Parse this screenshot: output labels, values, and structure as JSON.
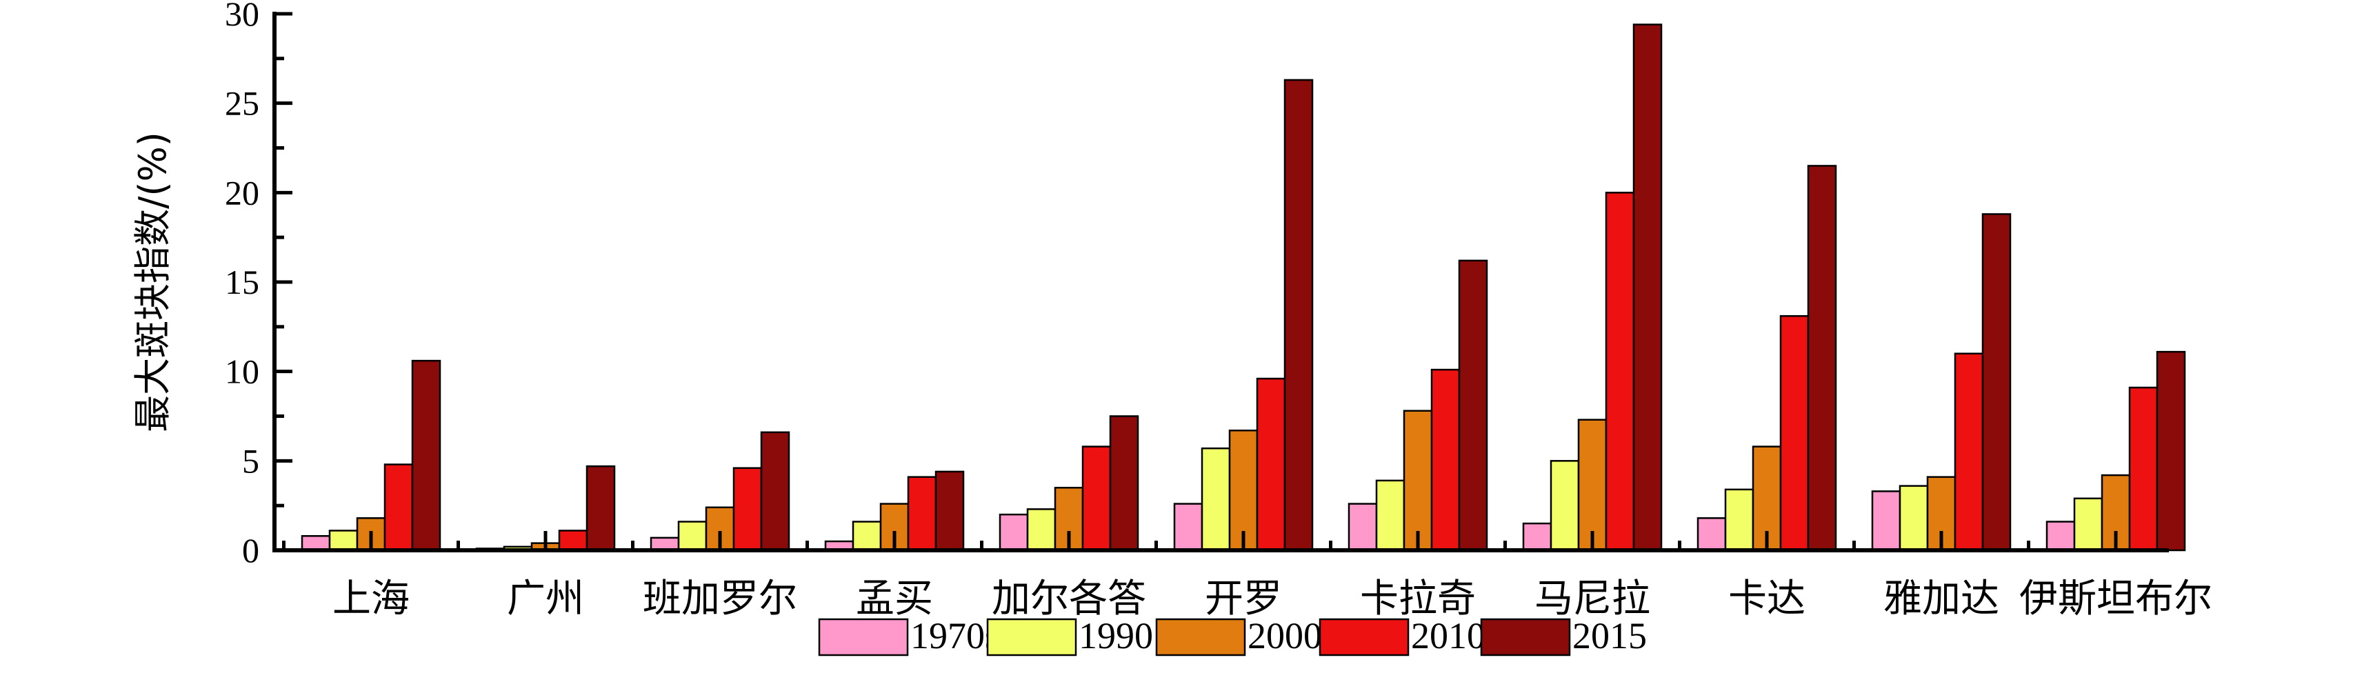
{
  "chart_data": {
    "type": "bar",
    "ylabel": "最大斑块指数/(%)",
    "ylim": [
      0,
      30
    ],
    "yticks": [
      0,
      5,
      10,
      15,
      20,
      25,
      30
    ],
    "categories": [
      "上海",
      "广州",
      "班加罗尔",
      "孟买",
      "加尔各答",
      "开罗",
      "卡拉奇",
      "马尼拉",
      "卡达",
      "雅加达",
      "伊斯坦布尔"
    ],
    "series": [
      {
        "name": "1970s",
        "color": "#ff99cc",
        "values": [
          0.8,
          0.1,
          0.7,
          0.5,
          2.0,
          2.6,
          2.6,
          1.5,
          1.8,
          3.3,
          1.6
        ]
      },
      {
        "name": "1990",
        "color": "#f2ff66",
        "values": [
          1.1,
          0.2,
          1.6,
          1.6,
          2.3,
          5.7,
          3.9,
          5.0,
          3.4,
          3.6,
          2.9
        ]
      },
      {
        "name": "2000",
        "color": "#e07c10",
        "values": [
          1.8,
          0.4,
          2.4,
          2.6,
          3.5,
          6.7,
          7.8,
          7.3,
          5.8,
          4.1,
          4.2
        ]
      },
      {
        "name": "2010",
        "color": "#ee1111",
        "values": [
          4.8,
          1.1,
          4.6,
          4.1,
          5.8,
          9.6,
          10.1,
          20.0,
          13.1,
          11.0,
          9.1
        ]
      },
      {
        "name": "2015",
        "color": "#8b0a0a",
        "values": [
          10.6,
          4.7,
          6.6,
          4.4,
          7.5,
          26.3,
          16.2,
          29.4,
          21.5,
          18.8,
          11.1
        ]
      }
    ],
    "legend_position": "bottom-center",
    "grid": false
  }
}
